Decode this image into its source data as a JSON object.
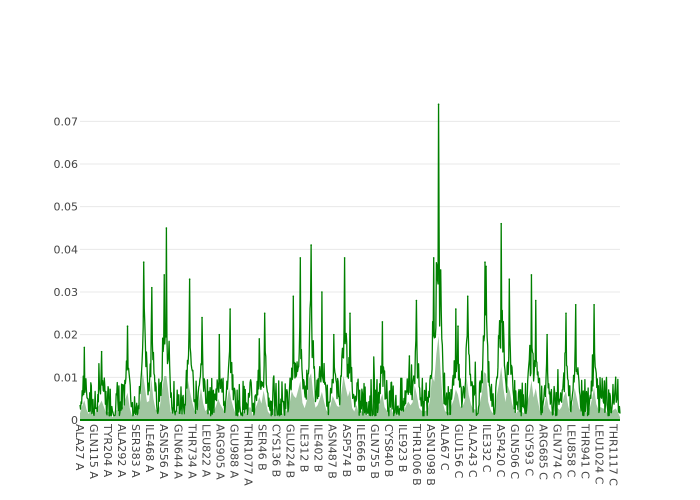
{
  "chart_data": {
    "type": "area",
    "title": "",
    "xlabel": "",
    "ylabel": "",
    "ylim": [
      0,
      0.075
    ],
    "y_ticks": [
      0,
      0.01,
      0.02,
      0.03,
      0.04,
      0.05,
      0.06,
      0.07
    ],
    "y_tick_labels": [
      "0",
      "0.01",
      "0.02",
      "0.03",
      "0.04",
      "0.05",
      "0.06",
      "0.07"
    ],
    "x_range": [
      0,
      1000
    ],
    "x_tick_positions": [
      0,
      26,
      52,
      78,
      104,
      130,
      156,
      182,
      208,
      234,
      260,
      286,
      312,
      338,
      364,
      390,
      416,
      442,
      468,
      494,
      520,
      546,
      572,
      598,
      624,
      650,
      676,
      702,
      728,
      754,
      780,
      806,
      832,
      858,
      884,
      910,
      936,
      962,
      988
    ],
    "x_tick_labels": [
      "ALA27 A",
      "GLN115 A",
      "TYR204 A",
      "ALA292 A",
      "SER383 A",
      "ILE468 A",
      "ASN556 A",
      "GLN644 A",
      "THR734 A",
      "LEU822 A",
      "ARG905 A",
      "GLU988 A",
      "THR1077 A",
      "SER46 B",
      "CYS136 B",
      "GLU224 B",
      "ILE312 B",
      "ILE402 B",
      "ASN487 B",
      "ASP574 B",
      "ILE666 B",
      "GLN755 B",
      "CYS840 B",
      "ILE923 B",
      "THR1006 B",
      "ASN1098 B",
      "ALA67 C",
      "GLU156 C",
      "ALA243 C",
      "ILE332 C",
      "ASP420 C",
      "GLN506 C",
      "GLY593 C",
      "ARG685 C",
      "GLN774 C",
      "LEU858 C",
      "THR941 C",
      "LEU1024 C",
      "THR1117 C"
    ],
    "series": [
      {
        "line_color": "#008000",
        "fill_color": "#8fbc8f",
        "x": [
          8,
          40,
          88,
          118,
          133,
          156,
          160,
          203,
          226,
          258,
          278,
          332,
          342,
          395,
          408,
          428,
          448,
          470,
          490,
          500,
          560,
          610,
          623,
          655,
          664,
          696,
          700,
          718,
          750,
          752,
          780,
          795,
          836,
          844,
          865,
          900,
          918,
          952,
          992
        ],
        "y": [
          0.017,
          0.016,
          0.022,
          0.037,
          0.031,
          0.034,
          0.045,
          0.033,
          0.024,
          0.02,
          0.026,
          0.019,
          0.025,
          0.029,
          0.038,
          0.041,
          0.03,
          0.02,
          0.038,
          0.025,
          0.023,
          0.015,
          0.028,
          0.038,
          0.074,
          0.026,
          0.022,
          0.029,
          0.037,
          0.036,
          0.046,
          0.033,
          0.034,
          0.028,
          0.02,
          0.025,
          0.027,
          0.027,
          0.01
        ]
      }
    ]
  }
}
